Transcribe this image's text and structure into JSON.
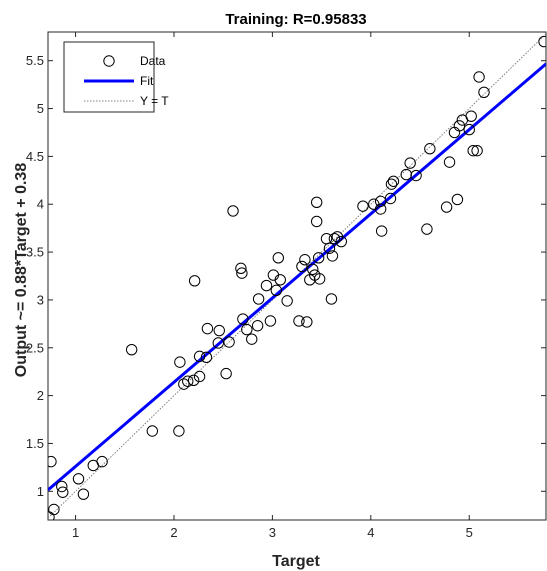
{
  "chart_data": {
    "type": "scatter",
    "title": "Training: R=0.95833",
    "xlabel": "Target",
    "ylabel": "Output ~= 0.88*Target + 0.38",
    "xlim": [
      0.72,
      5.78
    ],
    "ylim": [
      0.7,
      5.8
    ],
    "xticks": [
      1,
      2,
      3,
      4,
      5
    ],
    "yticks": [
      1,
      1.5,
      2,
      2.5,
      3,
      3.5,
      4,
      4.5,
      5,
      5.5
    ],
    "xtick_labels": [
      "1",
      "2",
      "3",
      "4",
      "5"
    ],
    "ytick_labels": [
      "1",
      "1.5",
      "2",
      "2.5",
      "3",
      "3.5",
      "4",
      "4.5",
      "5",
      "5.5"
    ],
    "grid": false,
    "legend": {
      "placement": "top-left",
      "entries": [
        "Data",
        "Fit",
        "Y = T"
      ]
    },
    "colors": {
      "data": "#000000",
      "fit": "#0000ff",
      "identity": "#7f7f7f"
    },
    "fit": {
      "slope": 0.88,
      "intercept": 0.38
    },
    "data": [
      [
        0.73,
        0.73
      ],
      [
        0.75,
        1.31
      ],
      [
        0.78,
        0.81
      ],
      [
        0.86,
        1.05
      ],
      [
        0.87,
        0.99
      ],
      [
        1.03,
        1.13
      ],
      [
        1.08,
        0.97
      ],
      [
        1.18,
        1.27
      ],
      [
        1.27,
        1.31
      ],
      [
        1.57,
        2.48
      ],
      [
        1.78,
        1.63
      ],
      [
        2.05,
        1.63
      ],
      [
        2.06,
        2.35
      ],
      [
        2.1,
        2.12
      ],
      [
        2.14,
        2.15
      ],
      [
        2.2,
        2.16
      ],
      [
        2.21,
        3.2
      ],
      [
        2.26,
        2.2
      ],
      [
        2.26,
        2.41
      ],
      [
        2.33,
        2.4
      ],
      [
        2.34,
        2.7
      ],
      [
        2.45,
        2.55
      ],
      [
        2.46,
        2.68
      ],
      [
        2.53,
        2.23
      ],
      [
        2.56,
        2.56
      ],
      [
        2.6,
        3.93
      ],
      [
        2.68,
        3.33
      ],
      [
        2.69,
        3.28
      ],
      [
        2.7,
        2.8
      ],
      [
        2.74,
        2.69
      ],
      [
        2.79,
        2.59
      ],
      [
        2.85,
        2.73
      ],
      [
        2.86,
        3.01
      ],
      [
        2.94,
        3.15
      ],
      [
        2.98,
        2.78
      ],
      [
        3.01,
        3.26
      ],
      [
        3.04,
        3.1
      ],
      [
        3.06,
        3.44
      ],
      [
        3.08,
        3.21
      ],
      [
        3.15,
        2.99
      ],
      [
        3.27,
        2.78
      ],
      [
        3.3,
        3.35
      ],
      [
        3.33,
        3.42
      ],
      [
        3.35,
        2.77
      ],
      [
        3.38,
        3.21
      ],
      [
        3.41,
        3.32
      ],
      [
        3.43,
        3.26
      ],
      [
        3.45,
        3.82
      ],
      [
        3.45,
        4.02
      ],
      [
        3.47,
        3.44
      ],
      [
        3.48,
        3.22
      ],
      [
        3.55,
        3.64
      ],
      [
        3.58,
        3.54
      ],
      [
        3.6,
        3.01
      ],
      [
        3.61,
        3.46
      ],
      [
        3.63,
        3.64
      ],
      [
        3.66,
        3.66
      ],
      [
        3.7,
        3.61
      ],
      [
        3.92,
        3.98
      ],
      [
        4.03,
        4.0
      ],
      [
        4.1,
        3.95
      ],
      [
        4.1,
        4.03
      ],
      [
        4.11,
        3.72
      ],
      [
        4.2,
        4.06
      ],
      [
        4.21,
        4.21
      ],
      [
        4.23,
        4.24
      ],
      [
        4.36,
        4.31
      ],
      [
        4.4,
        4.43
      ],
      [
        4.46,
        4.3
      ],
      [
        4.57,
        3.74
      ],
      [
        4.6,
        4.58
      ],
      [
        4.77,
        3.97
      ],
      [
        4.8,
        4.44
      ],
      [
        4.85,
        4.75
      ],
      [
        4.88,
        4.05
      ],
      [
        4.9,
        4.82
      ],
      [
        4.93,
        4.88
      ],
      [
        5.0,
        4.78
      ],
      [
        5.02,
        4.92
      ],
      [
        5.04,
        4.56
      ],
      [
        5.08,
        4.56
      ],
      [
        5.1,
        5.33
      ],
      [
        5.15,
        5.17
      ],
      [
        5.76,
        5.7
      ]
    ]
  }
}
